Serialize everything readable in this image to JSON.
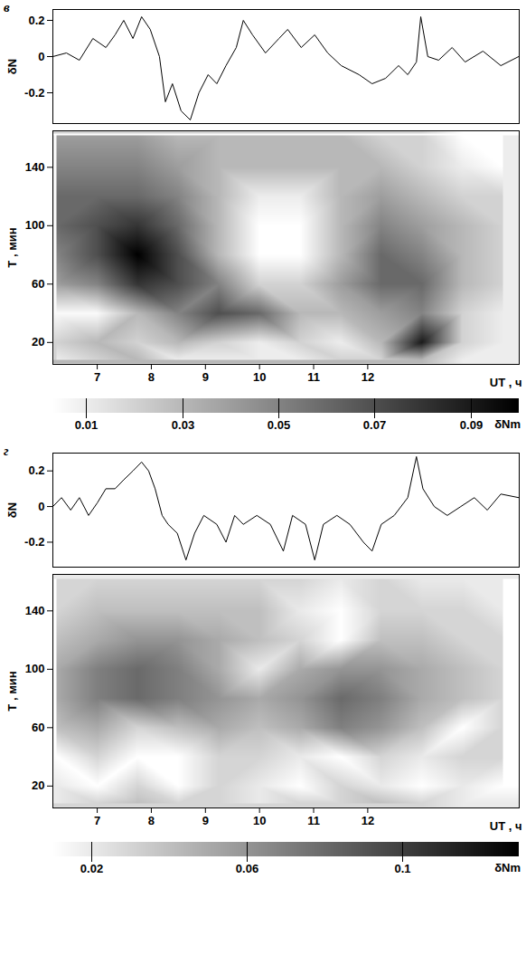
{
  "chart_data": [
    {
      "type": "line",
      "title": "в",
      "ylabel": "δN",
      "color": "#000000",
      "tick_labels": "y",
      "xlim": [
        6.18,
        14.8
      ],
      "ylim": [
        -0.37,
        0.26
      ],
      "yticks": [
        -0.2,
        0,
        0.2
      ],
      "x": [
        6.18,
        6.43,
        6.67,
        6.92,
        7.16,
        7.33,
        7.49,
        7.66,
        7.82,
        7.98,
        8.15,
        8.26,
        8.39,
        8.55,
        8.72,
        8.88,
        9.05,
        9.21,
        9.38,
        9.57,
        9.7,
        9.87,
        10.11,
        10.36,
        10.52,
        10.77,
        11.02,
        11.26,
        11.51,
        11.84,
        12.08,
        12.33,
        12.57,
        12.74,
        12.9,
        12.98,
        13.11,
        13.31,
        13.56,
        13.8,
        14.13,
        14.46,
        14.79
      ],
      "values": [
        0,
        0.02,
        -0.02,
        0.1,
        0.05,
        0.12,
        0.2,
        0.1,
        0.22,
        0.15,
        0,
        -0.25,
        -0.15,
        -0.3,
        -0.35,
        -0.2,
        -0.1,
        -0.15,
        -0.05,
        0.05,
        0.2,
        0.12,
        0.02,
        0.1,
        0.15,
        0.05,
        0.12,
        0.02,
        -0.05,
        -0.1,
        -0.15,
        -0.12,
        -0.05,
        -0.1,
        -0.03,
        0.22,
        0,
        -0.02,
        0.05,
        -0.03,
        0.03,
        -0.05,
        0
      ]
    },
    {
      "type": "heatmap",
      "xlabel": "UT , ч",
      "ylabel": "T , мин",
      "xlim": [
        6.18,
        14.8
      ],
      "xticks": [
        7,
        8,
        9,
        10,
        11,
        12
      ],
      "ylim": [
        5,
        165
      ],
      "yticks": [
        20,
        60,
        100,
        140
      ],
      "heatmap": {
        "x": [
          6.25,
          7,
          7.75,
          8.5,
          9.25,
          10,
          10.75,
          11.5,
          12.25,
          13,
          13.75,
          14.5
        ],
        "y": [
          8,
          20,
          40,
          60,
          80,
          100,
          120,
          140,
          162
        ],
        "values": [
          [
            0.01,
            0.02,
            0.03,
            0.01,
            0.01,
            0.01,
            0.01,
            0.02,
            0.02,
            0.03,
            0.01,
            0.01
          ],
          [
            0.02,
            0.03,
            0.02,
            0.03,
            0.02,
            0.01,
            0.02,
            0.01,
            0.03,
            0.09,
            0.02,
            0.01
          ],
          [
            0.005,
            0.005,
            0.03,
            0.05,
            0.07,
            0.06,
            0.03,
            0.03,
            0.04,
            0.05,
            0.02,
            0.01
          ],
          [
            0.04,
            0.05,
            0.08,
            0.07,
            0.05,
            0.02,
            0.02,
            0.04,
            0.06,
            0.06,
            0.03,
            0.02
          ],
          [
            0.05,
            0.07,
            0.1,
            0.07,
            0.03,
            0.003,
            0.003,
            0.03,
            0.06,
            0.05,
            0.03,
            0.02
          ],
          [
            0.06,
            0.07,
            0.08,
            0.06,
            0.03,
            0.003,
            0.003,
            0.03,
            0.05,
            0.04,
            0.03,
            0.02
          ],
          [
            0.06,
            0.06,
            0.06,
            0.05,
            0.03,
            0.01,
            0.01,
            0.03,
            0.04,
            0.03,
            0.02,
            0.02
          ],
          [
            0.05,
            0.05,
            0.05,
            0.04,
            0.03,
            0.03,
            0.03,
            0.03,
            0.03,
            0.02,
            0.01,
            0.003
          ],
          [
            0.04,
            0.04,
            0.04,
            0.03,
            0.03,
            0.03,
            0.03,
            0.03,
            0.02,
            0.02,
            0.003,
            0.003
          ]
        ]
      },
      "colorbar": {
        "label": "δNm",
        "range": [
          0.003,
          0.1
        ],
        "ticks": [
          0.01,
          0.03,
          0.05,
          0.07,
          0.09
        ]
      }
    },
    {
      "type": "line",
      "title": "г",
      "ylabel": "δN",
      "color": "#000000",
      "tick_labels": "y",
      "xlim": [
        6.18,
        14.8
      ],
      "ylim": [
        -0.34,
        0.3
      ],
      "yticks": [
        -0.2,
        0,
        0.2
      ],
      "x": [
        6.18,
        6.34,
        6.51,
        6.67,
        6.84,
        7.0,
        7.16,
        7.33,
        7.49,
        7.66,
        7.82,
        7.95,
        8.07,
        8.2,
        8.31,
        8.48,
        8.64,
        8.8,
        8.97,
        9.21,
        9.38,
        9.54,
        9.7,
        9.95,
        10.2,
        10.44,
        10.61,
        10.85,
        11.02,
        11.18,
        11.43,
        11.67,
        11.92,
        12.08,
        12.25,
        12.49,
        12.74,
        12.9,
        13.02,
        13.23,
        13.47,
        13.72,
        13.97,
        14.21,
        14.46,
        14.79
      ],
      "values": [
        0,
        0.05,
        -0.02,
        0.05,
        -0.05,
        0.02,
        0.1,
        0.1,
        0.15,
        0.2,
        0.25,
        0.2,
        0.1,
        -0.05,
        -0.1,
        -0.15,
        -0.3,
        -0.15,
        -0.05,
        -0.1,
        -0.2,
        -0.05,
        -0.1,
        -0.05,
        -0.1,
        -0.25,
        -0.05,
        -0.1,
        -0.3,
        -0.1,
        -0.05,
        -0.1,
        -0.2,
        -0.25,
        -0.1,
        -0.05,
        0.05,
        0.28,
        0.1,
        0,
        -0.05,
        0,
        0.05,
        -0.02,
        0.07,
        0.05
      ]
    },
    {
      "type": "heatmap",
      "xlabel": "UT , ч",
      "ylabel": "T , мин",
      "xlim": [
        6.18,
        14.8
      ],
      "xticks": [
        7,
        8,
        9,
        10,
        11,
        12
      ],
      "ylim": [
        5,
        165
      ],
      "yticks": [
        20,
        60,
        100,
        140
      ],
      "heatmap": {
        "x": [
          6.25,
          7,
          7.75,
          8.5,
          9.25,
          10,
          10.75,
          11.5,
          12.25,
          13,
          13.75,
          14.5
        ],
        "y": [
          8,
          20,
          40,
          60,
          80,
          100,
          120,
          140,
          162
        ],
        "values": [
          [
            0.02,
            0.03,
            0.04,
            0.03,
            0.03,
            0.02,
            0.03,
            0.03,
            0.04,
            0.03,
            0.02,
            0.02
          ],
          [
            0.02,
            0.01,
            0.03,
            0.01,
            0.03,
            0.02,
            0.01,
            0.03,
            0.02,
            0.01,
            0.02,
            0.01
          ],
          [
            0.01,
            0.03,
            0.01,
            0.01,
            0.03,
            0.03,
            0.02,
            0.01,
            0.03,
            0.02,
            0.03,
            0.03
          ],
          [
            0.04,
            0.05,
            0.03,
            0.04,
            0.05,
            0.04,
            0.05,
            0.07,
            0.06,
            0.04,
            0.01,
            0.03
          ],
          [
            0.05,
            0.07,
            0.08,
            0.07,
            0.06,
            0.05,
            0.06,
            0.08,
            0.07,
            0.05,
            0.04,
            0.03
          ],
          [
            0.05,
            0.07,
            0.08,
            0.07,
            0.05,
            0.02,
            0.05,
            0.06,
            0.06,
            0.05,
            0.04,
            0.03
          ],
          [
            0.04,
            0.05,
            0.06,
            0.06,
            0.05,
            0.04,
            0.03,
            0.01,
            0.04,
            0.04,
            0.03,
            0.03
          ],
          [
            0.03,
            0.04,
            0.04,
            0.04,
            0.04,
            0.04,
            0.02,
            0.01,
            0.03,
            0.03,
            0.03,
            0.02
          ],
          [
            0.03,
            0.03,
            0.03,
            0.03,
            0.03,
            0.03,
            0.03,
            0.02,
            0.03,
            0.02,
            0.02,
            0.02
          ]
        ]
      },
      "colorbar": {
        "label": "δNm",
        "range": [
          0.01,
          0.13
        ],
        "ticks": [
          0.02,
          0.06,
          0.1
        ]
      }
    }
  ]
}
